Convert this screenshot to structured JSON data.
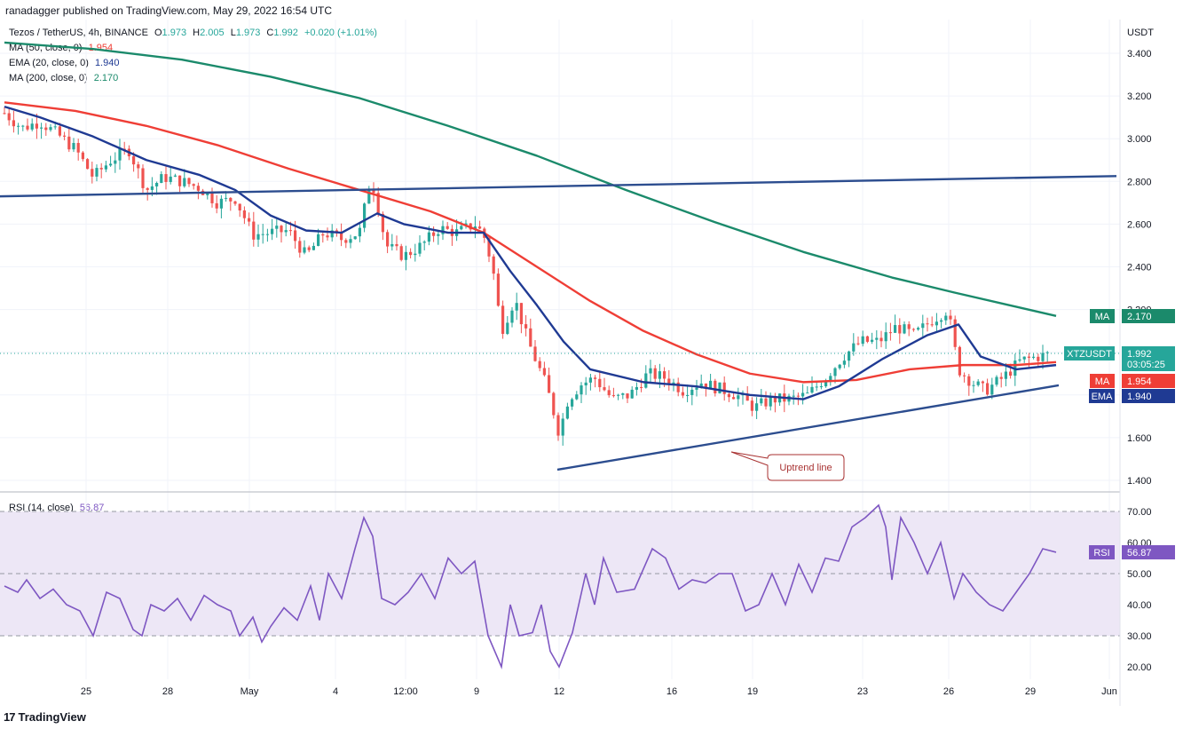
{
  "header": {
    "published": "ranadagger published on TradingView.com, May 29, 2022 16:54 UTC"
  },
  "legend": {
    "symbol_line": "Tezos / TetherUS, 4h, BINANCE",
    "ohlc": {
      "O": "1.973",
      "H": "2.005",
      "L": "1.973",
      "C": "1.992",
      "change": "+0.020 (+1.01%)"
    },
    "ma50_label": "MA (50, close, 0)",
    "ma50_value": "1.954",
    "ema20_label": "EMA (20, close, 0)",
    "ema20_value": "1.940",
    "ma200_label": "MA (200, close, 0)",
    "ma200_value": "2.170",
    "rsi_label": "RSI (14, close)",
    "rsi_value": "56.87"
  },
  "price_axis": {
    "currency": "USDT",
    "ticks": [
      "3.400",
      "3.200",
      "3.000",
      "2.800",
      "2.600",
      "2.400",
      "2.200",
      "2.000",
      "1.800",
      "1.600",
      "1.400"
    ]
  },
  "rsi_axis": {
    "ticks": [
      "70.00",
      "60.00",
      "50.00",
      "40.00",
      "30.00",
      "20.00"
    ]
  },
  "time_axis": {
    "labels": [
      "25",
      "28",
      "May",
      "4",
      "12:00",
      "9",
      "12",
      "16",
      "19",
      "23",
      "26",
      "29",
      "Jun"
    ]
  },
  "price_tags": {
    "ma200": {
      "label": "MA",
      "value": "2.170"
    },
    "last": {
      "label": "XTZUSDT",
      "value": "1.992",
      "countdown": "03:05:25"
    },
    "ma50": {
      "label": "MA",
      "value": "1.954"
    },
    "ema20": {
      "label": "EMA",
      "value": "1.940"
    },
    "rsi": {
      "label": "RSI",
      "value": "56.87"
    }
  },
  "annotation": {
    "text": "Uptrend line"
  },
  "footer": {
    "brand": "TradingView"
  },
  "colors": {
    "up": "#26a69a",
    "down": "#ef5350",
    "ma200": "#1b8a6b",
    "ma50": "#ef3e36",
    "ema20": "#1f3a93",
    "trendline": "#2c4d8f",
    "rsi": "#7e57c2",
    "rsi_band": "#ede7f6",
    "annotation": "#a83232"
  },
  "chart_data": [
    {
      "type": "candlestick",
      "title": "Tezos / TetherUS, 4h, BINANCE",
      "ylabel": "USDT",
      "ylim": [
        1.36,
        3.48
      ],
      "x_labels": [
        "25",
        "28",
        "May",
        "4",
        "12:00",
        "9",
        "12",
        "16",
        "19",
        "23",
        "26",
        "29",
        "Jun"
      ],
      "series": [
        {
          "name": "MA (50, close, 0)",
          "last": 1.954,
          "x": [
            0,
            80,
            160,
            240,
            320,
            400,
            480,
            540,
            600,
            660,
            720,
            780,
            840,
            900,
            960,
            1020,
            1080,
            1140,
            1185
          ],
          "values": [
            3.17,
            3.13,
            3.06,
            2.97,
            2.86,
            2.76,
            2.66,
            2.56,
            2.4,
            2.24,
            2.1,
            1.99,
            1.9,
            1.86,
            1.87,
            1.92,
            1.94,
            1.94,
            1.954
          ]
        },
        {
          "name": "EMA (20, close, 0)",
          "last": 1.94,
          "x": [
            0,
            40,
            100,
            160,
            220,
            260,
            300,
            340,
            380,
            420,
            450,
            500,
            540,
            570,
            600,
            630,
            660,
            720,
            780,
            840,
            900,
            940,
            990,
            1040,
            1075,
            1100,
            1140,
            1185
          ],
          "values": [
            3.15,
            3.1,
            3.01,
            2.9,
            2.83,
            2.76,
            2.64,
            2.57,
            2.56,
            2.65,
            2.6,
            2.56,
            2.56,
            2.38,
            2.22,
            2.05,
            1.92,
            1.86,
            1.84,
            1.8,
            1.78,
            1.84,
            1.97,
            2.08,
            2.13,
            1.98,
            1.92,
            1.94
          ]
        },
        {
          "name": "MA (200, close, 0)",
          "last": 2.17,
          "x": [
            0,
            100,
            200,
            300,
            400,
            500,
            600,
            700,
            800,
            900,
            1000,
            1070,
            1185
          ],
          "values": [
            3.45,
            3.42,
            3.37,
            3.29,
            3.19,
            3.06,
            2.92,
            2.76,
            2.61,
            2.47,
            2.35,
            2.28,
            2.17
          ]
        },
        {
          "name": "XTZUSDT",
          "last": 1.992,
          "x": [
            5,
            25,
            45,
            65,
            85,
            105,
            125,
            145,
            165,
            185,
            205,
            225,
            245,
            265,
            285,
            305,
            325,
            345,
            365,
            385,
            405,
            418,
            425,
            435,
            455,
            475,
            495,
            515,
            535,
            545,
            555,
            565,
            580,
            595,
            605,
            615,
            622,
            630,
            640,
            655,
            670,
            690,
            710,
            730,
            750,
            770,
            790,
            810,
            830,
            850,
            870,
            890,
            910,
            930,
            950,
            970,
            990,
            1010,
            1030,
            1050,
            1068,
            1080,
            1095,
            1110,
            1130,
            1150,
            1170,
            1185
          ],
          "values": [
            3.12,
            3.05,
            3.08,
            3.02,
            2.95,
            2.82,
            2.9,
            2.95,
            2.76,
            2.82,
            2.8,
            2.77,
            2.7,
            2.72,
            2.55,
            2.56,
            2.57,
            2.45,
            2.56,
            2.53,
            2.56,
            2.82,
            2.7,
            2.5,
            2.45,
            2.5,
            2.58,
            2.56,
            2.6,
            2.55,
            2.4,
            2.1,
            2.25,
            2.05,
            1.95,
            1.85,
            1.75,
            1.62,
            1.78,
            1.85,
            1.88,
            1.78,
            1.8,
            1.9,
            1.88,
            1.82,
            1.86,
            1.83,
            1.8,
            1.74,
            1.78,
            1.78,
            1.8,
            1.88,
            1.98,
            2.05,
            2.05,
            2.12,
            2.08,
            2.15,
            2.2,
            1.92,
            1.86,
            1.82,
            1.88,
            1.96,
            1.98,
            1.992
          ]
        }
      ],
      "trendlines": [
        {
          "name": "horizontal",
          "points": [
            [
              0,
              2.73
            ],
            [
              1258,
              2.825
            ]
          ]
        },
        {
          "name": "Uptrend line",
          "points": [
            [
              628,
              1.45
            ],
            [
              1193,
              1.845
            ]
          ]
        }
      ]
    },
    {
      "type": "line",
      "title": "RSI (14, close)",
      "ylim": [
        15,
        75
      ],
      "bands": [
        30,
        50,
        70
      ],
      "series": [
        {
          "name": "RSI (14, close)",
          "last": 56.87,
          "x": [
            0,
            15,
            25,
            40,
            55,
            70,
            85,
            100,
            115,
            130,
            145,
            155,
            165,
            180,
            195,
            210,
            225,
            240,
            255,
            265,
            280,
            290,
            300,
            315,
            330,
            345,
            355,
            365,
            380,
            395,
            405,
            415,
            425,
            440,
            455,
            470,
            485,
            500,
            515,
            530,
            545,
            560,
            570,
            580,
            595,
            605,
            615,
            625,
            640,
            655,
            665,
            675,
            690,
            710,
            730,
            745,
            760,
            775,
            790,
            805,
            820,
            835,
            850,
            865,
            880,
            895,
            910,
            925,
            940,
            955,
            970,
            985,
            993,
            1000,
            1010,
            1025,
            1040,
            1055,
            1070,
            1080,
            1095,
            1110,
            1125,
            1140,
            1155,
            1170,
            1185
          ],
          "values": [
            46,
            44,
            48,
            42,
            45,
            40,
            38,
            30,
            44,
            42,
            32,
            30,
            40,
            38,
            42,
            35,
            43,
            40,
            38,
            30,
            36,
            28,
            33,
            39,
            35,
            46,
            35,
            50,
            42,
            58,
            68,
            62,
            42,
            40,
            44,
            50,
            42,
            55,
            50,
            54,
            30,
            20,
            40,
            30,
            31,
            40,
            25,
            20,
            31,
            50,
            40,
            55,
            44,
            45,
            58,
            55,
            45,
            48,
            47,
            50,
            50,
            38,
            40,
            50,
            40,
            53,
            44,
            55,
            54,
            65,
            68,
            72,
            65,
            48,
            68,
            60,
            50,
            60,
            42,
            50,
            44,
            40,
            38,
            44,
            50,
            58,
            56.87
          ]
        }
      ]
    }
  ]
}
